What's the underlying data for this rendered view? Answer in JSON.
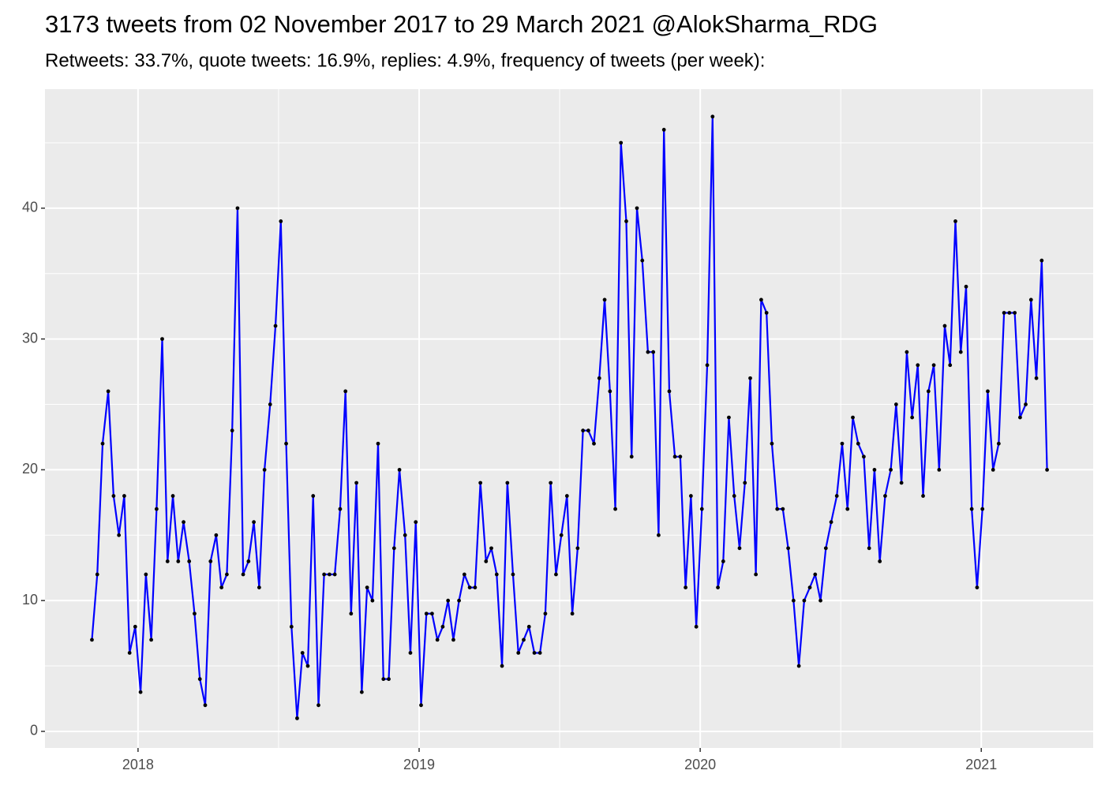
{
  "chart_data": {
    "type": "line",
    "title": "3173 tweets from 02 November 2017 to 29 March 2021 @AlokSharma_RDG",
    "subtitle": "Retweets: 33.7%, quote tweets: 16.9%, replies: 4.9%, frequency of tweets (per week):",
    "x": [
      2017.836,
      2017.855,
      2017.874,
      2017.894,
      2017.913,
      2017.932,
      2017.951,
      2017.97,
      2017.99,
      2018.009,
      2018.028,
      2018.047,
      2018.066,
      2018.086,
      2018.105,
      2018.124,
      2018.143,
      2018.162,
      2018.182,
      2018.201,
      2018.22,
      2018.239,
      2018.258,
      2018.278,
      2018.297,
      2018.316,
      2018.335,
      2018.354,
      2018.374,
      2018.393,
      2018.412,
      2018.431,
      2018.45,
      2018.47,
      2018.489,
      2018.508,
      2018.527,
      2018.546,
      2018.566,
      2018.585,
      2018.604,
      2018.623,
      2018.642,
      2018.662,
      2018.681,
      2018.7,
      2018.719,
      2018.738,
      2018.758,
      2018.777,
      2018.796,
      2018.815,
      2018.834,
      2018.854,
      2018.873,
      2018.892,
      2018.911,
      2018.93,
      2018.95,
      2018.969,
      2018.988,
      2019.007,
      2019.026,
      2019.046,
      2019.065,
      2019.084,
      2019.103,
      2019.122,
      2019.142,
      2019.161,
      2019.18,
      2019.199,
      2019.218,
      2019.238,
      2019.257,
      2019.276,
      2019.295,
      2019.314,
      2019.334,
      2019.353,
      2019.372,
      2019.391,
      2019.41,
      2019.43,
      2019.449,
      2019.468,
      2019.487,
      2019.506,
      2019.526,
      2019.545,
      2019.564,
      2019.583,
      2019.602,
      2019.622,
      2019.641,
      2019.66,
      2019.679,
      2019.698,
      2019.718,
      2019.737,
      2019.756,
      2019.775,
      2019.794,
      2019.814,
      2019.833,
      2019.852,
      2019.871,
      2019.89,
      2019.91,
      2019.929,
      2019.948,
      2019.967,
      2019.986,
      2020.006,
      2020.025,
      2020.044,
      2020.063,
      2020.082,
      2020.102,
      2020.121,
      2020.14,
      2020.159,
      2020.178,
      2020.198,
      2020.217,
      2020.236,
      2020.255,
      2020.274,
      2020.294,
      2020.313,
      2020.332,
      2020.351,
      2020.37,
      2020.39,
      2020.409,
      2020.428,
      2020.447,
      2020.466,
      2020.486,
      2020.505,
      2020.524,
      2020.543,
      2020.562,
      2020.582,
      2020.601,
      2020.62,
      2020.639,
      2020.658,
      2020.678,
      2020.697,
      2020.716,
      2020.735,
      2020.754,
      2020.774,
      2020.793,
      2020.812,
      2020.831,
      2020.85,
      2020.87,
      2020.889,
      2020.908,
      2020.927,
      2020.946,
      2020.966,
      2020.985,
      2021.004,
      2021.023,
      2021.042,
      2021.062,
      2021.081,
      2021.1,
      2021.119,
      2021.138,
      2021.158,
      2021.177,
      2021.196,
      2021.215,
      2021.234
    ],
    "series": [
      {
        "color": "#0000ff",
        "point_color": "#000000",
        "values": [
          7,
          12,
          22,
          26,
          18,
          15,
          18,
          6,
          8,
          3,
          12,
          7,
          17,
          30,
          13,
          18,
          13,
          16,
          13,
          9,
          4,
          2,
          13,
          15,
          11,
          12,
          23,
          40,
          12,
          13,
          16,
          11,
          20,
          25,
          31,
          39,
          22,
          8,
          1,
          6,
          5,
          18,
          2,
          12,
          12,
          12,
          17,
          26,
          9,
          19,
          3,
          11,
          10,
          22,
          4,
          4,
          14,
          20,
          15,
          6,
          16,
          2,
          9,
          9,
          7,
          8,
          10,
          7,
          10,
          12,
          11,
          11,
          19,
          13,
          14,
          12,
          5,
          19,
          12,
          6,
          7,
          8,
          6,
          6,
          9,
          19,
          12,
          15,
          18,
          9,
          14,
          23,
          23,
          22,
          27,
          33,
          26,
          17,
          45,
          39,
          21,
          40,
          36,
          29,
          29,
          15,
          46,
          26,
          21,
          21,
          11,
          18,
          8,
          17,
          28,
          47,
          11,
          13,
          24,
          18,
          14,
          19,
          27,
          12,
          33,
          32,
          22,
          17,
          17,
          14,
          10,
          5,
          10,
          11,
          12,
          10,
          14,
          16,
          18,
          22,
          17,
          24,
          22,
          21,
          14,
          20,
          13,
          18,
          20,
          25,
          19,
          29,
          24,
          28,
          18,
          26,
          28,
          20,
          31,
          28,
          39,
          29,
          34,
          17,
          11,
          17,
          26,
          20,
          22,
          32,
          32,
          32,
          24,
          25,
          33,
          27,
          36,
          20
        ]
      }
    ],
    "xlim": [
      2017.669,
      2021.398
    ],
    "xticks": [
      2018,
      2019,
      2020,
      2021
    ],
    "ylim": [
      -1.27,
      49.1
    ],
    "yticks": [
      0,
      10,
      20,
      30,
      40
    ],
    "grid": true,
    "background": "#ebebeb"
  }
}
